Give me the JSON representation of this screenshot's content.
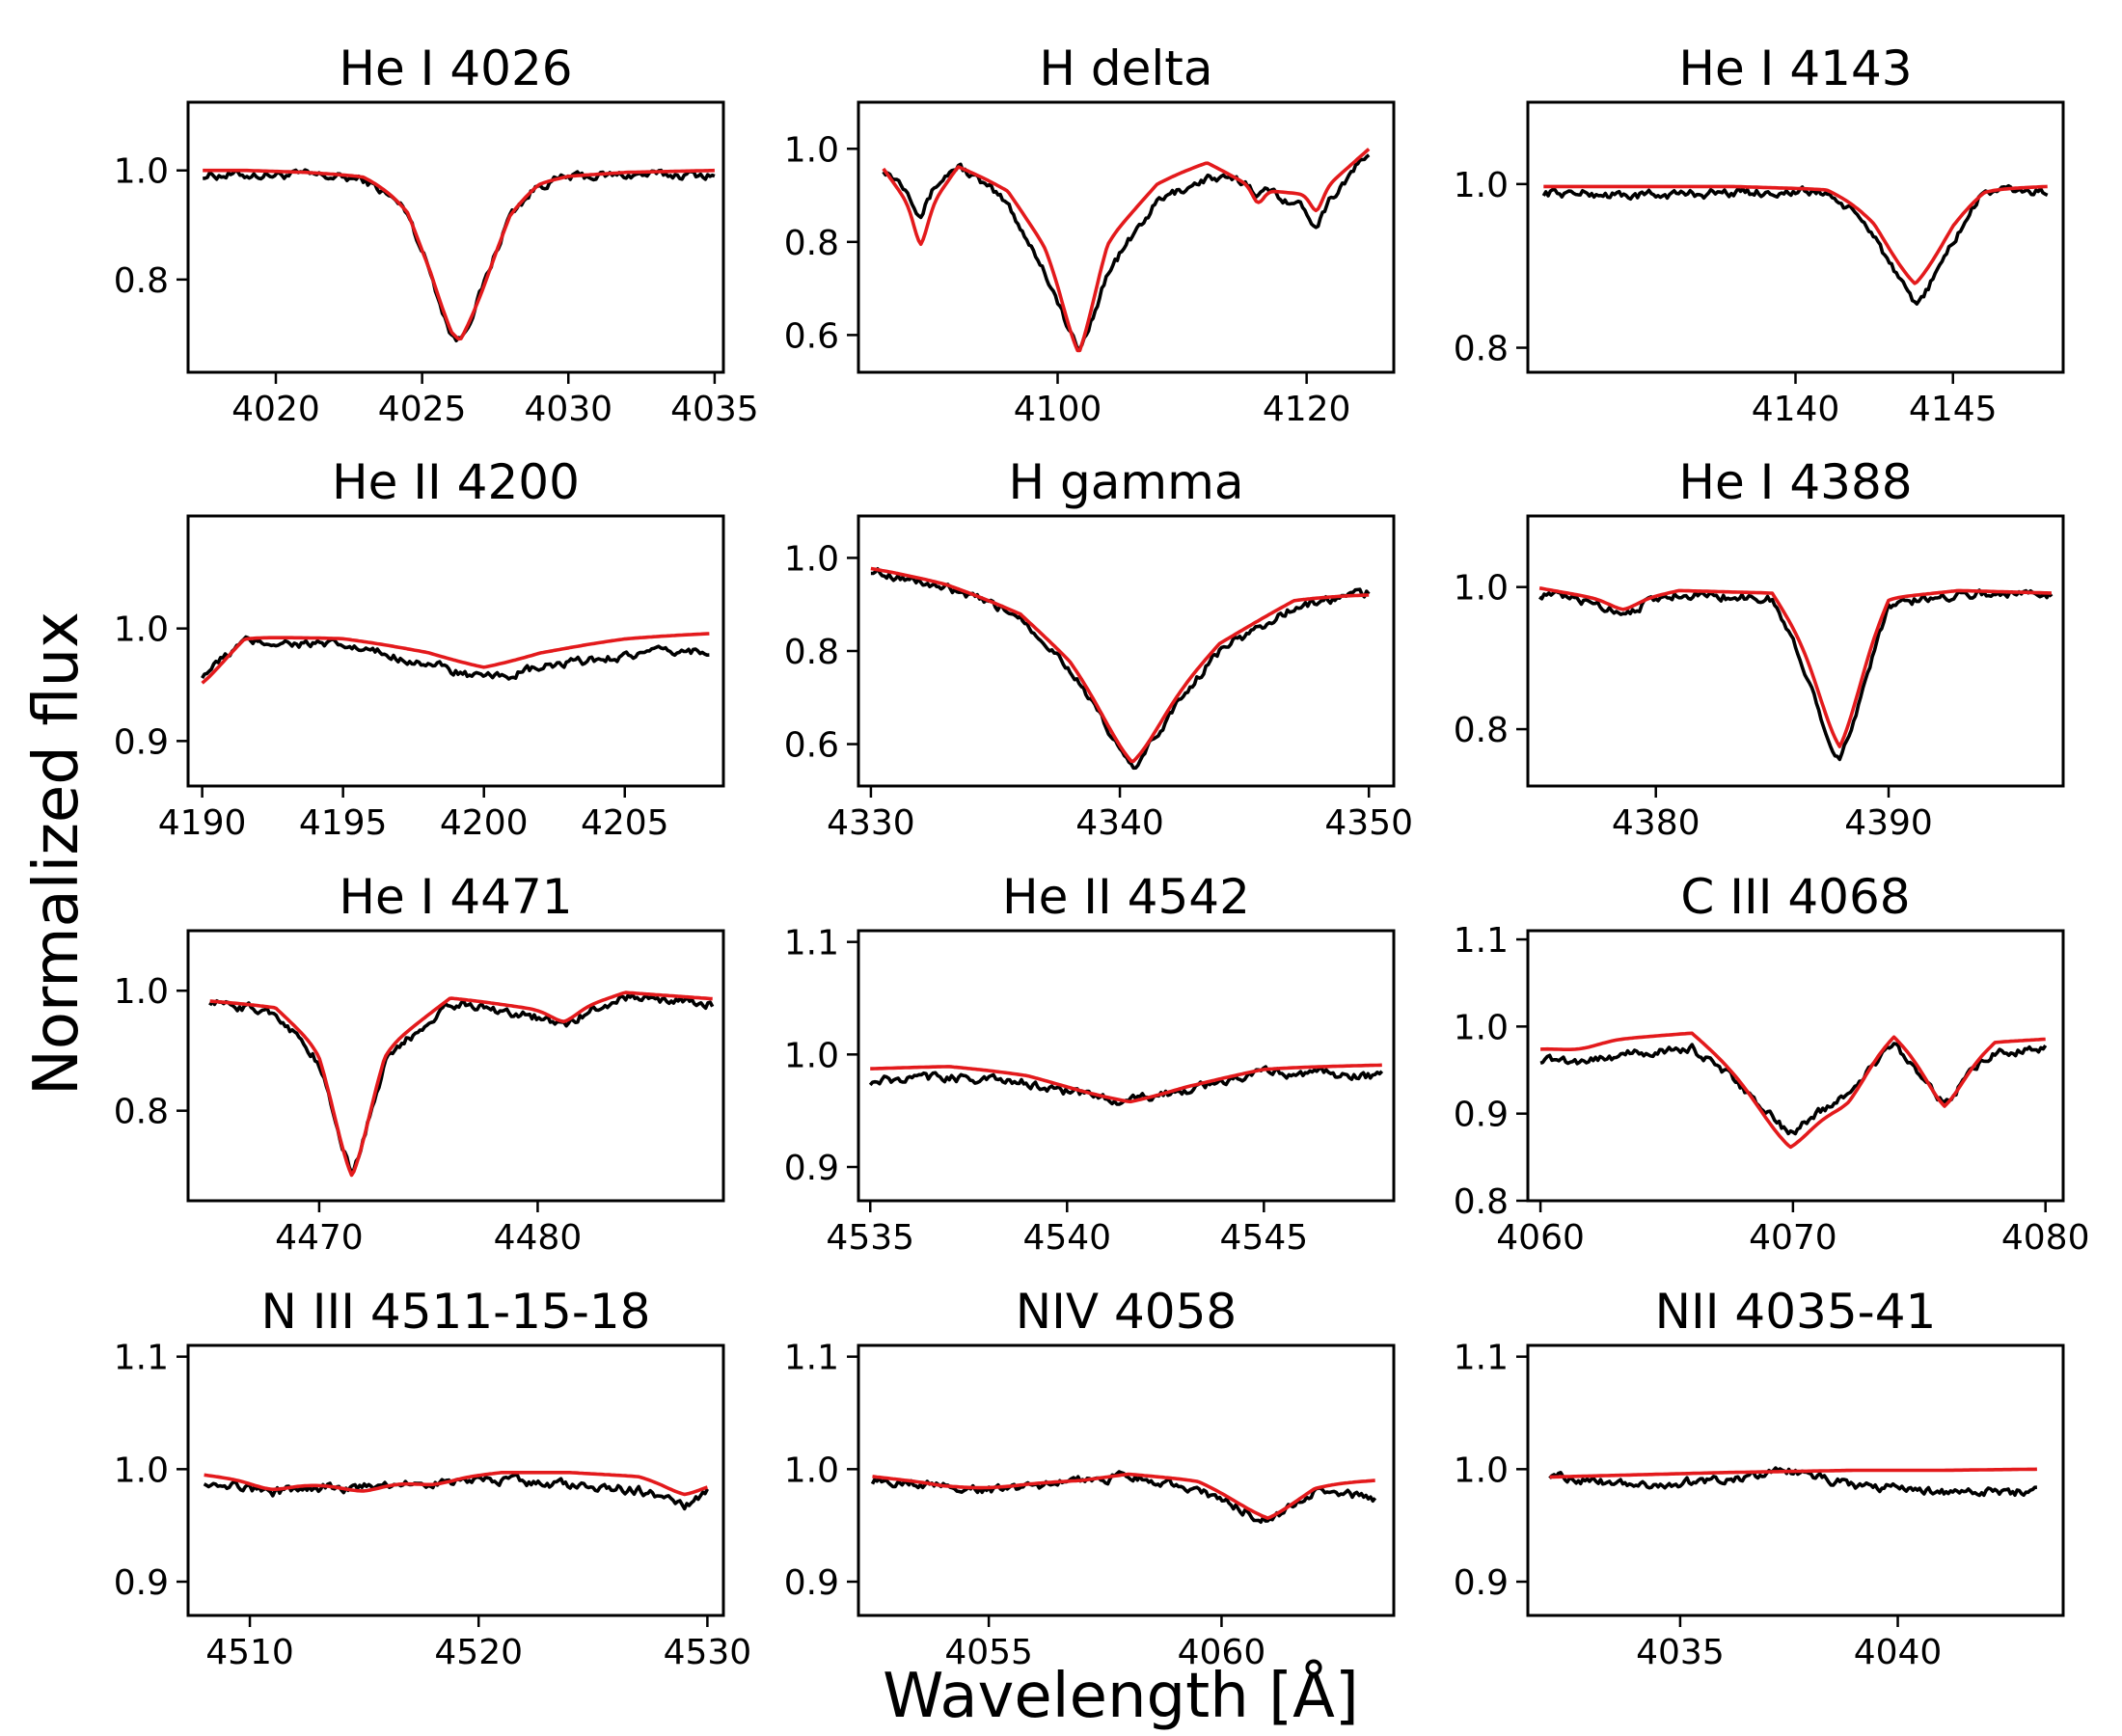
{
  "figure": {
    "ylabel": "Normalized flux",
    "xlabel": "Wavelength [Å]",
    "colors": {
      "observed": "#000000",
      "model": "#e31a1c",
      "frame": "#000000"
    }
  },
  "chart_data": [
    {
      "type": "line",
      "title": "He I 4026",
      "xlim": [
        4017,
        4035.3
      ],
      "ylim": [
        0.63,
        1.125
      ],
      "xticks": [
        4020,
        4025,
        4030,
        4035
      ],
      "yticks": [
        0.8,
        1.0
      ],
      "profile": {
        "kind": "lines",
        "features": [
          {
            "center": 4026.2,
            "depth": 0.315,
            "width": 1.15
          }
        ],
        "continuum": 1.0,
        "slope": 0.0
      },
      "series": [
        {
          "name": "observed",
          "x": [
            4017.5,
            4019,
            4021,
            4023,
            4024.5,
            4025.3,
            4026.0,
            4026.3,
            4027,
            4028,
            4029,
            4030,
            4032,
            4035
          ],
          "y": [
            0.99,
            0.99,
            0.99,
            0.98,
            0.93,
            0.82,
            0.7,
            0.69,
            0.78,
            0.92,
            0.97,
            0.985,
            0.99,
            0.99
          ]
        },
        {
          "name": "model",
          "x": [
            4017.5,
            4019,
            4021,
            4023,
            4024.5,
            4025.3,
            4026.0,
            4026.3,
            4027,
            4028,
            4029,
            4030,
            4032,
            4035
          ],
          "y": [
            1.0,
            1.0,
            0.995,
            0.985,
            0.935,
            0.83,
            0.71,
            0.69,
            0.78,
            0.92,
            0.97,
            0.985,
            0.995,
            1.0
          ]
        }
      ]
    },
    {
      "type": "line",
      "title": "H delta",
      "xlim": [
        4084,
        4127
      ],
      "ylim": [
        0.52,
        1.1
      ],
      "xticks": [
        4100,
        4120
      ],
      "yticks": [
        0.6,
        0.8,
        1.0
      ],
      "profile": {
        "kind": "lines",
        "features": [
          {
            "center": 4101.7,
            "depth": 0.25,
            "width": 1.2
          },
          {
            "center": 4101.7,
            "depth": 0.18,
            "width": 4.5
          },
          {
            "center": 4089.0,
            "depth": 0.17,
            "width": 0.55
          },
          {
            "center": 4116.1,
            "depth": 0.09,
            "width": 0.45
          },
          {
            "center": 4120.8,
            "depth": 0.11,
            "width": 0.5
          }
        ],
        "continuum": 0.975,
        "slope": 0.0012
      },
      "series": [
        {
          "name": "observed",
          "x": [
            4086,
            4089,
            4092,
            4096,
            4099,
            4101.7,
            4104,
            4108,
            4112,
            4116,
            4120.8,
            4125
          ],
          "y": [
            0.96,
            0.88,
            0.97,
            0.88,
            0.72,
            0.57,
            0.72,
            0.88,
            0.93,
            0.91,
            0.83,
            0.99
          ]
        },
        {
          "name": "model",
          "x": [
            4086,
            4089,
            4092,
            4096,
            4099,
            4101.7,
            4104,
            4108,
            4112,
            4116,
            4120.8,
            4125
          ],
          "y": [
            0.96,
            0.8,
            0.97,
            0.92,
            0.78,
            0.57,
            0.8,
            0.93,
            0.97,
            0.88,
            0.86,
            1.0
          ]
        }
      ]
    },
    {
      "type": "line",
      "title": "He I 4143",
      "xlim": [
        4131.5,
        4148.5
      ],
      "ylim": [
        0.77,
        1.1
      ],
      "xticks": [
        4140,
        4145
      ],
      "yticks": [
        0.8,
        1.0
      ],
      "profile": {
        "kind": "lines",
        "features": [
          {
            "center": 4143.8,
            "depth": 0.14,
            "width": 1.0
          }
        ],
        "continuum": 0.99,
        "slope": 0.0
      },
      "series": [
        {
          "name": "observed",
          "x": [
            4132,
            4135,
            4138,
            4141,
            4142.5,
            4143.8,
            4145,
            4146,
            4148
          ],
          "y": [
            0.99,
            0.985,
            0.99,
            0.99,
            0.94,
            0.85,
            0.93,
            0.995,
            0.99
          ]
        },
        {
          "name": "model",
          "x": [
            4132,
            4135,
            4138,
            4141,
            4142.5,
            4143.8,
            4145,
            4146,
            4148
          ],
          "y": [
            1.0,
            1.0,
            1.0,
            0.995,
            0.96,
            0.89,
            0.96,
            0.995,
            1.0
          ]
        }
      ]
    },
    {
      "type": "line",
      "title": "He II 4200",
      "xlim": [
        4189.5,
        4208.5
      ],
      "ylim": [
        0.86,
        1.1
      ],
      "xticks": [
        4190,
        4195,
        4200,
        4205
      ],
      "yticks": [
        0.9,
        1.0
      ],
      "profile": {
        "kind": "lines",
        "features": [
          {
            "center": 4200.1,
            "depth": 0.03,
            "width": 2.5
          },
          {
            "center": 4190.0,
            "depth": 0.03,
            "width": 0.8
          }
        ],
        "continuum": 0.985,
        "slope": 0.0
      },
      "series": [
        {
          "name": "observed",
          "x": [
            4190,
            4191.5,
            4195,
            4198,
            4200,
            4202,
            4205,
            4208
          ],
          "y": [
            0.96,
            0.99,
            0.985,
            0.97,
            0.955,
            0.965,
            0.975,
            0.98
          ]
        },
        {
          "name": "model",
          "x": [
            4190,
            4191.5,
            4195,
            4198,
            4200,
            4202,
            4205,
            4208
          ],
          "y": [
            0.95,
            0.995,
            0.995,
            0.985,
            0.97,
            0.985,
            0.995,
            1.0
          ]
        }
      ]
    },
    {
      "type": "line",
      "title": "H gamma",
      "xlim": [
        4329.5,
        4351
      ],
      "ylim": [
        0.51,
        1.09
      ],
      "xticks": [
        4330,
        4340,
        4350
      ],
      "yticks": [
        0.6,
        0.8,
        1.0
      ],
      "profile": {
        "kind": "lines",
        "features": [
          {
            "center": 4340.5,
            "depth": 0.2,
            "width": 1.1
          },
          {
            "center": 4340.5,
            "depth": 0.25,
            "width": 4.2
          }
        ],
        "continuum": 0.99,
        "slope": -0.0015
      },
      "series": [
        {
          "name": "observed",
          "x": [
            4330,
            4333,
            4336,
            4338,
            4340.5,
            4342,
            4344,
            4347,
            4350
          ],
          "y": [
            0.97,
            0.93,
            0.88,
            0.76,
            0.55,
            0.66,
            0.8,
            0.89,
            0.92
          ]
        },
        {
          "name": "model",
          "x": [
            4330,
            4333,
            4336,
            4338,
            4340.5,
            4342,
            4344,
            4347,
            4350
          ],
          "y": [
            0.97,
            0.94,
            0.89,
            0.78,
            0.57,
            0.68,
            0.82,
            0.91,
            0.905
          ]
        }
      ]
    },
    {
      "type": "line",
      "title": "He I 4388",
      "xlim": [
        4374.5,
        4397.5
      ],
      "ylim": [
        0.72,
        1.1
      ],
      "xticks": [
        4380,
        4390
      ],
      "yticks": [
        0.8,
        1.0
      ],
      "profile": {
        "kind": "lines",
        "features": [
          {
            "center": 4387.9,
            "depth": 0.23,
            "width": 0.85
          },
          {
            "center": 4378.6,
            "depth": 0.03,
            "width": 0.6
          }
        ],
        "continuum": 0.995,
        "slope": 0.0
      },
      "series": [
        {
          "name": "observed",
          "x": [
            4375,
            4378.6,
            4381,
            4385,
            4387.9,
            4390,
            4393,
            4397
          ],
          "y": [
            0.99,
            0.965,
            0.99,
            0.98,
            0.75,
            0.97,
            0.99,
            0.99
          ]
        },
        {
          "name": "model",
          "x": [
            4375,
            4378.6,
            4381,
            4385,
            4387.9,
            4390,
            4393,
            4397
          ],
          "y": [
            1.0,
            0.97,
            0.995,
            0.99,
            0.78,
            0.98,
            0.995,
            0.99
          ]
        }
      ]
    },
    {
      "type": "line",
      "title": "He I 4471",
      "xlim": [
        4464,
        4488.5
      ],
      "ylim": [
        0.65,
        1.1
      ],
      "xticks": [
        4470,
        4480
      ],
      "yticks": [
        0.8,
        1.0
      ],
      "profile": {
        "kind": "lines",
        "features": [
          {
            "center": 4471.5,
            "depth": 0.28,
            "width": 0.8
          },
          {
            "center": 4471.5,
            "depth": 0.04,
            "width": 2.5
          },
          {
            "center": 4481.2,
            "depth": 0.045,
            "width": 0.6
          }
        ],
        "continuum": 0.99,
        "slope": 0.0
      },
      "series": [
        {
          "name": "observed",
          "x": [
            4465,
            4468,
            4470,
            4471.5,
            4473,
            4476,
            4481.2,
            4484,
            4488
          ],
          "y": [
            0.98,
            0.96,
            0.87,
            0.7,
            0.87,
            0.98,
            0.94,
            0.99,
            0.975
          ]
        },
        {
          "name": "model",
          "x": [
            4465,
            4468,
            4470,
            4471.5,
            4473,
            4476,
            4481.2,
            4484,
            4488
          ],
          "y": [
            0.98,
            0.97,
            0.88,
            0.7,
            0.88,
            0.99,
            0.95,
            1.0,
            0.985
          ]
        }
      ]
    },
    {
      "type": "line",
      "title": "He II 4542",
      "xlim": [
        4534.7,
        4548.3
      ],
      "ylim": [
        0.87,
        1.11
      ],
      "xticks": [
        4535,
        4540,
        4545
      ],
      "yticks": [
        0.9,
        1.0,
        1.1
      ],
      "profile": {
        "kind": "lines",
        "features": [
          {
            "center": 4541.6,
            "depth": 0.03,
            "width": 1.8
          }
        ],
        "continuum": 0.983,
        "slope": 0.0003
      },
      "series": [
        {
          "name": "observed",
          "x": [
            4535,
            4537,
            4539,
            4540.5,
            4541.6,
            4543,
            4545,
            4548
          ],
          "y": [
            0.975,
            0.98,
            0.975,
            0.965,
            0.96,
            0.97,
            0.985,
            0.98
          ]
        },
        {
          "name": "model",
          "x": [
            4535,
            4537,
            4539,
            4540.5,
            4541.6,
            4543,
            4545,
            4548
          ],
          "y": [
            0.99,
            0.993,
            0.985,
            0.97,
            0.96,
            0.975,
            0.99,
            0.993
          ]
        }
      ]
    },
    {
      "type": "line",
      "title": "C III 4068",
      "xlim": [
        4059.5,
        4080.7
      ],
      "ylim": [
        0.8,
        1.11
      ],
      "xticks": [
        4060,
        4070,
        4080
      ],
      "yticks": [
        0.8,
        0.9,
        1.0,
        1.1
      ],
      "profile": {
        "kind": "lines",
        "features": [
          {
            "center": 4069.9,
            "depth": 0.11,
            "width": 1.2
          },
          {
            "center": 4072.2,
            "depth": 0.06,
            "width": 0.7
          },
          {
            "center": 4076.0,
            "depth": 0.07,
            "width": 0.7
          },
          {
            "center": 4061.5,
            "depth": 0.02,
            "width": 0.8
          }
        ],
        "continuum": 0.975,
        "slope": 0.0
      },
      "series": [
        {
          "name": "observed",
          "x": [
            4060,
            4063,
            4066,
            4069.9,
            4072.2,
            4074,
            4076,
            4078,
            4080
          ],
          "y": [
            0.96,
            0.965,
            0.975,
            0.88,
            0.93,
            0.98,
            0.915,
            0.97,
            0.975
          ]
        },
        {
          "name": "model",
          "x": [
            4060,
            4063,
            4066,
            4069.9,
            4072.2,
            4074,
            4076,
            4078,
            4080
          ],
          "y": [
            0.975,
            0.99,
            1.0,
            0.86,
            0.92,
            0.995,
            0.91,
            0.985,
            0.99
          ]
        }
      ]
    },
    {
      "type": "line",
      "title": "N III 4511-15-18",
      "xlim": [
        4507.3,
        4530.7
      ],
      "ylim": [
        0.87,
        1.11
      ],
      "xticks": [
        4510,
        4520,
        4530
      ],
      "yticks": [
        0.9,
        1.0,
        1.1
      ],
      "profile": {
        "kind": "lines",
        "features": [
          {
            "center": 4510.9,
            "depth": 0.015,
            "width": 0.8
          },
          {
            "center": 4514.9,
            "depth": 0.015,
            "width": 0.8
          },
          {
            "center": 4518.1,
            "depth": 0.012,
            "width": 0.8
          },
          {
            "center": 4529.0,
            "depth": 0.018,
            "width": 0.8
          }
        ],
        "continuum": 0.99,
        "slope": 0.0
      },
      "series": [
        {
          "name": "observed",
          "x": [
            4508,
            4511,
            4515,
            4518,
            4521,
            4524,
            4527,
            4529,
            4530
          ],
          "y": [
            0.99,
            0.98,
            0.985,
            0.99,
            0.99,
            0.985,
            0.98,
            0.965,
            0.98
          ]
        },
        {
          "name": "model",
          "x": [
            4508,
            4511,
            4515,
            4518,
            4521,
            4524,
            4527,
            4529,
            4530
          ],
          "y": [
            0.997,
            0.985,
            0.983,
            0.99,
            1.0,
            1.0,
            0.995,
            0.98,
            0.985
          ]
        }
      ]
    },
    {
      "type": "line",
      "title": "NIV 4058",
      "xlim": [
        4052.2,
        4063.7
      ],
      "ylim": [
        0.87,
        1.11
      ],
      "xticks": [
        4055,
        4060
      ],
      "yticks": [
        0.9,
        1.0,
        1.1
      ],
      "profile": {
        "kind": "lines",
        "features": [
          {
            "center": 4061.0,
            "depth": 0.035,
            "width": 0.7
          },
          {
            "center": 4054.8,
            "depth": 0.01,
            "width": 0.6
          }
        ],
        "continuum": 0.99,
        "slope": 0.0
      },
      "series": [
        {
          "name": "observed",
          "x": [
            4052.5,
            4054,
            4055.5,
            4057,
            4058,
            4059.5,
            4061,
            4062,
            4063.3
          ],
          "y": [
            0.99,
            0.985,
            0.98,
            0.99,
            0.995,
            0.98,
            0.955,
            0.98,
            0.97
          ]
        },
        {
          "name": "model",
          "x": [
            4052.5,
            4054,
            4055.5,
            4057,
            4058,
            4059.5,
            4061,
            4062,
            4063.3
          ],
          "y": [
            0.995,
            0.985,
            0.985,
            0.99,
            0.998,
            0.99,
            0.957,
            0.985,
            0.99
          ]
        }
      ]
    },
    {
      "type": "line",
      "title": "NII 4035-41",
      "xlim": [
        4031.5,
        4043.8
      ],
      "ylim": [
        0.87,
        1.11
      ],
      "xticks": [
        4035,
        4040
      ],
      "yticks": [
        0.9,
        1.0,
        1.1
      ],
      "profile": {
        "kind": "lines",
        "features": [],
        "continuum": 0.99,
        "slope": 0.0
      },
      "series": [
        {
          "name": "observed",
          "x": [
            4032,
            4034,
            4036,
            4037.5,
            4039,
            4041,
            4043.2
          ],
          "y": [
            0.995,
            0.985,
            0.99,
            1.0,
            0.985,
            0.98,
            0.98
          ]
        },
        {
          "name": "model",
          "x": [
            4032,
            4034,
            4036,
            4037.5,
            4039,
            4041,
            4043.2
          ],
          "y": [
            0.993,
            0.995,
            0.997,
            0.998,
            0.999,
            0.999,
            1.0
          ]
        }
      ]
    }
  ]
}
